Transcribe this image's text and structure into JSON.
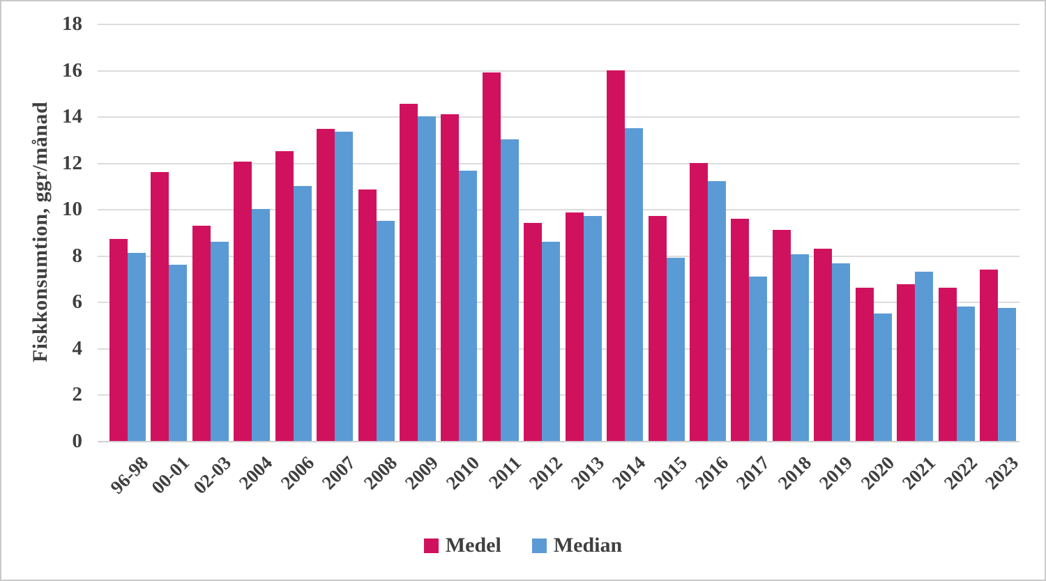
{
  "figure": {
    "background": "#ffffff",
    "border_color": "#c9c9c9",
    "text_color": "#3f3f3f",
    "gridline_color": "#dcdcdc"
  },
  "chart_data": {
    "type": "bar",
    "title": "",
    "xlabel": "",
    "ylabel": "Fiskkonsumtion, ggr/månad",
    "ylim": [
      0,
      18
    ],
    "ytick_step": 2,
    "yticks": [
      0,
      2,
      4,
      6,
      8,
      10,
      12,
      14,
      16,
      18
    ],
    "grid": "horizontal",
    "legend_position": "bottom",
    "categories": [
      "96-98",
      "00-01",
      "02-03",
      "2004",
      "2006",
      "2007",
      "2008",
      "2009",
      "2010",
      "2011",
      "2012",
      "2013",
      "2014",
      "2015",
      "2016",
      "2017",
      "2018",
      "2019",
      "2020",
      "2021",
      "2022",
      "2023"
    ],
    "series": [
      {
        "name": "Medel",
        "color": "#d0125e",
        "values": [
          8.7,
          11.6,
          9.3,
          12.05,
          12.5,
          13.45,
          10.85,
          14.55,
          14.1,
          15.9,
          9.4,
          9.85,
          16.0,
          9.7,
          12.0,
          9.6,
          9.1,
          8.3,
          6.6,
          6.75,
          6.6,
          7.4
        ]
      },
      {
        "name": "Median",
        "color": "#5b9bd5",
        "values": [
          8.1,
          7.6,
          8.6,
          10.0,
          11.0,
          13.35,
          9.5,
          14.0,
          11.65,
          13.0,
          8.6,
          9.7,
          13.5,
          7.9,
          11.2,
          7.1,
          8.05,
          7.65,
          5.5,
          7.3,
          5.8,
          5.75
        ]
      }
    ]
  }
}
